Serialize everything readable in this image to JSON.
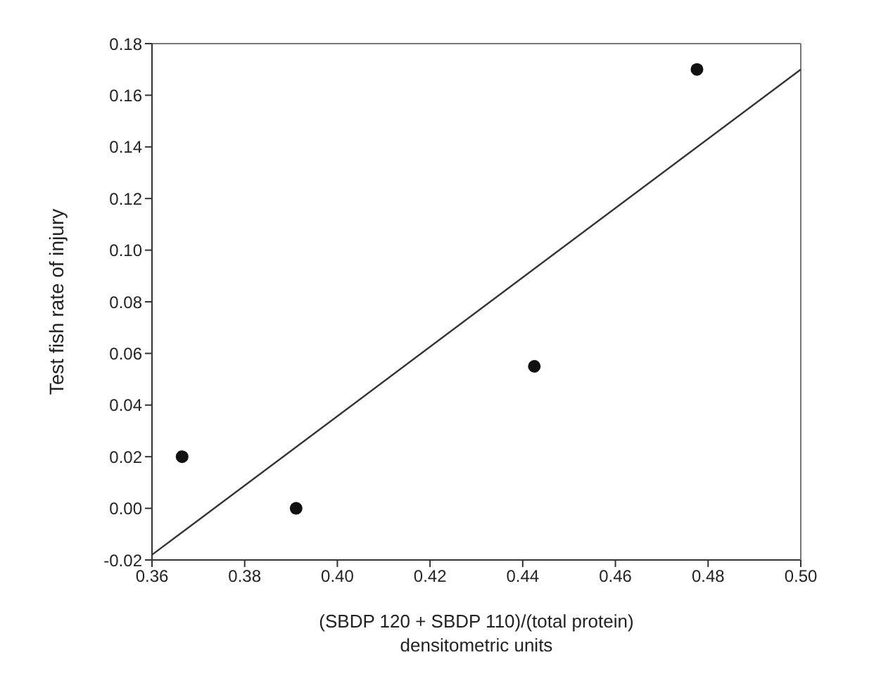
{
  "chart_data": {
    "type": "scatter",
    "xlabel": "(SBDP 120 + SBDP 110)/(total protein)\ndensitometric units",
    "ylabel": "Test fish rate of injury",
    "series": [
      {
        "color": "#111111",
        "x": [
          0.3665,
          0.3911,
          0.4425,
          0.4776
        ],
        "values": [
          0.02,
          0.0,
          0.055,
          0.17
        ],
        "marker": "circle"
      },
      {
        "type": "line",
        "color": "#333333",
        "x": [
          0.36,
          0.5
        ],
        "values": [
          -0.018,
          0.17
        ],
        "marker": "none",
        "line_style": "solid"
      }
    ],
    "xlim": [
      0.36,
      0.5
    ],
    "xticks": [
      {
        "value": 0.36,
        "label": "0.36"
      },
      {
        "value": 0.38,
        "label": "0.38"
      },
      {
        "value": 0.4,
        "label": "0.40"
      },
      {
        "value": 0.42,
        "label": "0.42"
      },
      {
        "value": 0.44,
        "label": "0.44"
      },
      {
        "value": 0.46,
        "label": "0.46"
      },
      {
        "value": 0.48,
        "label": "0.48"
      },
      {
        "value": 0.5,
        "label": "0.50"
      }
    ],
    "ylim": [
      -0.02,
      0.18
    ],
    "yticks": [
      {
        "value": -0.02,
        "label": "-0.02"
      },
      {
        "value": 0,
        "label": "0.00"
      },
      {
        "value": 0.02,
        "label": "0.02"
      },
      {
        "value": 0.04,
        "label": "0.04"
      },
      {
        "value": 0.06,
        "label": "0.06"
      },
      {
        "value": 0.08,
        "label": "0.08"
      },
      {
        "value": 0.1,
        "label": "0.10"
      },
      {
        "value": 0.12,
        "label": "0.12"
      },
      {
        "value": 0.14,
        "label": "0.14"
      },
      {
        "value": 0.16,
        "label": "0.16"
      },
      {
        "value": 0.18,
        "label": "0.18"
      }
    ]
  }
}
